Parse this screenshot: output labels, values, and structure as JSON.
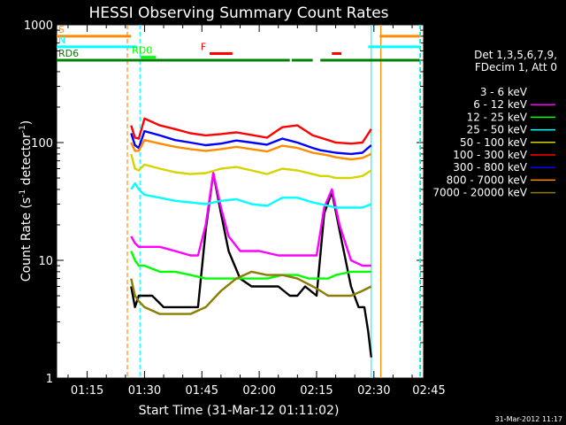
{
  "chart_data": {
    "type": "line",
    "title": "HESSI Observing Summary Count Rates",
    "xlabel": "Start Time (31-Mar-12 01:11:02)",
    "ylabel_main": "Count Rate (s",
    "ylabel_sup1": "-1",
    "ylabel_mid": " detector",
    "ylabel_sup2": "-1",
    "ylabel_end": ")",
    "footer": "31-Mar-2012 11:17",
    "y_scale": "log",
    "ylim": [
      1,
      1000
    ],
    "xlim_minutes": [
      7,
      103
    ],
    "x_ticks": [
      {
        "label": "01:15",
        "min": 15
      },
      {
        "label": "01:30",
        "min": 30
      },
      {
        "label": "01:45",
        "min": 45
      },
      {
        "label": "02:00",
        "min": 60
      },
      {
        "label": "02:15",
        "min": 75
      },
      {
        "label": "02:30",
        "min": 90
      },
      {
        "label": "02:45",
        "min": 105
      }
    ],
    "y_tick_labels": [
      {
        "label": "1",
        "v": 1
      },
      {
        "label": "10",
        "v": 10
      },
      {
        "label": "100",
        "v": 100
      },
      {
        "label": "1000",
        "v": 1000
      }
    ],
    "legend_header": [
      "Det 1,3,5,6,7,9,",
      "FDecim 1, Att 0"
    ],
    "series": [
      {
        "name": "3 - 6 keV",
        "color": "#000000",
        "points": [
          [
            26.5,
            6
          ],
          [
            27.5,
            4
          ],
          [
            28.5,
            5
          ],
          [
            29.5,
            5
          ],
          [
            32,
            5
          ],
          [
            35,
            4
          ],
          [
            38,
            4
          ],
          [
            41,
            4
          ],
          [
            44,
            4
          ],
          [
            46,
            18
          ],
          [
            48,
            55
          ],
          [
            50,
            25
          ],
          [
            52,
            12
          ],
          [
            55,
            7
          ],
          [
            58,
            6
          ],
          [
            62,
            6
          ],
          [
            65,
            6
          ],
          [
            68,
            5
          ],
          [
            70,
            5
          ],
          [
            72,
            6
          ],
          [
            75,
            5
          ],
          [
            77,
            25
          ],
          [
            79,
            38
          ],
          [
            81,
            18
          ],
          [
            84,
            6
          ],
          [
            86,
            4
          ],
          [
            87.5,
            4
          ],
          [
            88.5,
            2.5
          ],
          [
            89.3,
            1.5
          ]
        ]
      },
      {
        "name": "6 - 12 keV",
        "color": "#ff00ff",
        "points": [
          [
            26.5,
            16
          ],
          [
            27.5,
            14
          ],
          [
            28.5,
            13
          ],
          [
            30,
            13
          ],
          [
            34,
            13
          ],
          [
            38,
            12
          ],
          [
            42,
            11
          ],
          [
            44,
            11
          ],
          [
            46,
            20
          ],
          [
            48,
            55
          ],
          [
            50,
            28
          ],
          [
            52,
            16
          ],
          [
            55,
            12
          ],
          [
            60,
            12
          ],
          [
            65,
            11
          ],
          [
            70,
            11
          ],
          [
            73,
            11
          ],
          [
            75,
            11
          ],
          [
            77,
            28
          ],
          [
            79,
            40
          ],
          [
            81,
            20
          ],
          [
            84,
            10
          ],
          [
            87,
            9
          ],
          [
            89.3,
            9
          ]
        ]
      },
      {
        "name": "12 - 25 keV",
        "color": "#00ff00",
        "points": [
          [
            26.5,
            12
          ],
          [
            27.5,
            10
          ],
          [
            28.5,
            9
          ],
          [
            30,
            9
          ],
          [
            34,
            8
          ],
          [
            38,
            8
          ],
          [
            42,
            7.5
          ],
          [
            46,
            7
          ],
          [
            50,
            7
          ],
          [
            54,
            7
          ],
          [
            58,
            7
          ],
          [
            62,
            7
          ],
          [
            66,
            7.5
          ],
          [
            70,
            7.5
          ],
          [
            73,
            7
          ],
          [
            76,
            7
          ],
          [
            78,
            7
          ],
          [
            80,
            7.5
          ],
          [
            84,
            8
          ],
          [
            87,
            8
          ],
          [
            89.3,
            8
          ]
        ]
      },
      {
        "name": "25 - 50 keV",
        "color": "#00ffff",
        "points": [
          [
            26.5,
            40
          ],
          [
            27.5,
            45
          ],
          [
            28.5,
            40
          ],
          [
            30,
            36
          ],
          [
            34,
            34
          ],
          [
            38,
            32
          ],
          [
            42,
            31
          ],
          [
            46,
            30
          ],
          [
            50,
            32
          ],
          [
            54,
            33
          ],
          [
            58,
            30
          ],
          [
            62,
            29
          ],
          [
            66,
            34
          ],
          [
            70,
            34
          ],
          [
            74,
            31
          ],
          [
            76,
            30
          ],
          [
            78,
            29
          ],
          [
            80,
            28
          ],
          [
            84,
            28
          ],
          [
            87,
            28
          ],
          [
            89.3,
            30
          ]
        ]
      },
      {
        "name": "50 - 100 keV",
        "color": "#d4d400",
        "points": [
          [
            26.5,
            80
          ],
          [
            27.5,
            60
          ],
          [
            28.5,
            58
          ],
          [
            30,
            65
          ],
          [
            34,
            60
          ],
          [
            38,
            56
          ],
          [
            42,
            54
          ],
          [
            46,
            55
          ],
          [
            50,
            60
          ],
          [
            54,
            62
          ],
          [
            58,
            58
          ],
          [
            62,
            54
          ],
          [
            66,
            60
          ],
          [
            70,
            58
          ],
          [
            74,
            54
          ],
          [
            76,
            52
          ],
          [
            78,
            52
          ],
          [
            80,
            50
          ],
          [
            84,
            50
          ],
          [
            87,
            52
          ],
          [
            89.3,
            58
          ]
        ]
      },
      {
        "name": "100 - 300 keV",
        "color": "#ff0000",
        "points": [
          [
            26.5,
            140
          ],
          [
            27.5,
            110
          ],
          [
            28.5,
            108
          ],
          [
            30,
            160
          ],
          [
            34,
            140
          ],
          [
            38,
            130
          ],
          [
            42,
            120
          ],
          [
            46,
            115
          ],
          [
            50,
            118
          ],
          [
            54,
            122
          ],
          [
            58,
            116
          ],
          [
            62,
            110
          ],
          [
            66,
            135
          ],
          [
            70,
            140
          ],
          [
            74,
            115
          ],
          [
            76,
            110
          ],
          [
            78,
            105
          ],
          [
            80,
            100
          ],
          [
            84,
            98
          ],
          [
            87,
            100
          ],
          [
            89.3,
            130
          ]
        ]
      },
      {
        "name": "300 - 800 keV",
        "color": "#0000ff",
        "points": [
          [
            26.5,
            120
          ],
          [
            27.5,
            95
          ],
          [
            28.5,
            90
          ],
          [
            30,
            125
          ],
          [
            34,
            115
          ],
          [
            38,
            105
          ],
          [
            42,
            100
          ],
          [
            46,
            95
          ],
          [
            50,
            98
          ],
          [
            54,
            104
          ],
          [
            58,
            100
          ],
          [
            62,
            96
          ],
          [
            66,
            108
          ],
          [
            70,
            100
          ],
          [
            74,
            90
          ],
          [
            76,
            86
          ],
          [
            78,
            84
          ],
          [
            80,
            82
          ],
          [
            84,
            80
          ],
          [
            87,
            82
          ],
          [
            89.3,
            95
          ]
        ]
      },
      {
        "name": "800 - 7000 keV",
        "color": "#ff8c00",
        "points": [
          [
            26.5,
            100
          ],
          [
            27.5,
            85
          ],
          [
            28.5,
            85
          ],
          [
            30,
            105
          ],
          [
            34,
            98
          ],
          [
            38,
            92
          ],
          [
            42,
            88
          ],
          [
            46,
            85
          ],
          [
            50,
            88
          ],
          [
            54,
            92
          ],
          [
            58,
            88
          ],
          [
            62,
            84
          ],
          [
            66,
            94
          ],
          [
            70,
            90
          ],
          [
            74,
            82
          ],
          [
            76,
            80
          ],
          [
            78,
            78
          ],
          [
            80,
            75
          ],
          [
            84,
            72
          ],
          [
            87,
            74
          ],
          [
            89.3,
            80
          ]
        ]
      },
      {
        "name": "7000 - 20000 keV",
        "color": "#8b7d00",
        "points": [
          [
            26.5,
            7
          ],
          [
            27.5,
            5
          ],
          [
            28.5,
            4.5
          ],
          [
            30,
            4
          ],
          [
            34,
            3.5
          ],
          [
            38,
            3.5
          ],
          [
            42,
            3.5
          ],
          [
            46,
            4
          ],
          [
            50,
            5.5
          ],
          [
            54,
            7
          ],
          [
            58,
            8
          ],
          [
            62,
            7.5
          ],
          [
            66,
            7.5
          ],
          [
            70,
            7
          ],
          [
            74,
            6
          ],
          [
            76,
            5.5
          ],
          [
            78,
            5
          ],
          [
            80,
            5
          ],
          [
            84,
            5
          ],
          [
            87,
            5.5
          ],
          [
            89.3,
            6
          ]
        ]
      }
    ],
    "flag_bars": [
      {
        "label": "S",
        "color": "#ff8c00",
        "v": 800,
        "segments": [
          [
            7,
            26.5
          ],
          [
            91.5,
            102
          ]
        ]
      },
      {
        "label": "N",
        "color": "#00ffff",
        "v": 650,
        "segments": [
          [
            7,
            28
          ],
          [
            88.5,
            102
          ]
        ]
      },
      {
        "label": "F",
        "color": "#ff0000",
        "v": 570,
        "segments": [
          [
            47,
            53
          ],
          [
            79,
            81.5
          ]
        ]
      },
      {
        "label": "RD0",
        "color": "#00ff00",
        "v": 530,
        "segments": [
          [
            29,
            33
          ]
        ]
      },
      {
        "label": "RD6",
        "color": "#008000",
        "v": 500,
        "segments": [
          [
            7,
            68
          ],
          [
            68.5,
            74
          ],
          [
            76,
            102
          ]
        ]
      }
    ],
    "vlines": [
      {
        "min": 25.5,
        "color": "#ff8c00",
        "dashed": true
      },
      {
        "min": 28.8,
        "color": "#00ffff",
        "dashed": true
      },
      {
        "min": 89.3,
        "color": "#00ffff",
        "dashed": false
      },
      {
        "min": 91.8,
        "color": "#ff8c00",
        "dashed": false
      },
      {
        "min": 102,
        "color": "#00ffff",
        "dashed": true
      },
      {
        "min": 102.2,
        "color": "#ff8c00",
        "dashed": true
      }
    ]
  }
}
